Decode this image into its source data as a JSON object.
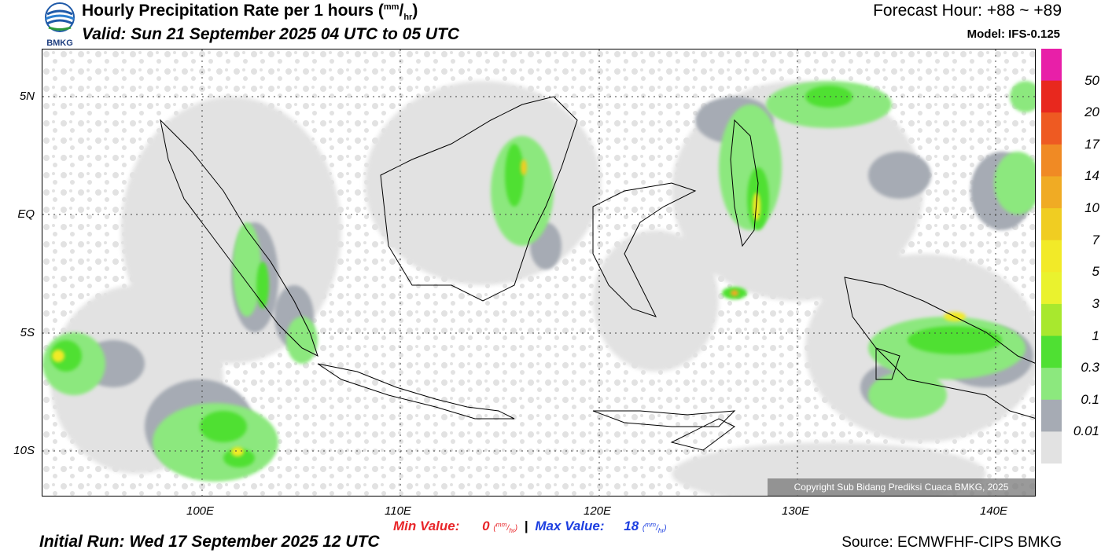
{
  "header": {
    "title": "Hourly Precipitation Rate per 1 hours (mm/hr)",
    "valid": "Valid: Sun 21 September 2025 04 UTC to 05 UTC",
    "forecast_hour": "Forecast Hour: +88 ~ +89",
    "model": "Model: IFS-0.125"
  },
  "logo": {
    "text": "BMKG",
    "icon": "bmkg-logo-icon"
  },
  "map": {
    "lat_labels": [
      "5N",
      "EQ",
      "5S",
      "10S"
    ],
    "lon_labels": [
      "100E",
      "110E",
      "120E",
      "130E",
      "140E"
    ],
    "copyright": "Copyright Sub Bidang Prediksi Cuaca BMKG, 2025",
    "gridlines": "dotted"
  },
  "colorbar": {
    "labels": [
      "50",
      "20",
      "17",
      "14",
      "10",
      "7",
      "5",
      "3",
      "1",
      "0.3",
      "0.1",
      "0.01"
    ],
    "colors": [
      "#e81fa8",
      "#e8281e",
      "#ee5a22",
      "#f08a24",
      "#f0ab24",
      "#f0cd22",
      "#f2ea28",
      "#eaf22e",
      "#a8e82e",
      "#4fe033",
      "#8ce87e",
      "#a6abb4",
      "#e2e2e2"
    ]
  },
  "footer": {
    "min_label": "Min Value:",
    "min_value": "0",
    "max_label": "Max Value:",
    "max_value": "18",
    "unit_top": "mm",
    "unit_bottom": "hr",
    "separator": "|",
    "initial_run": "Initial Run: Wed 17 September 2025 12 UTC",
    "source": "Source: ECMWFHF-CIPS BMKG"
  }
}
